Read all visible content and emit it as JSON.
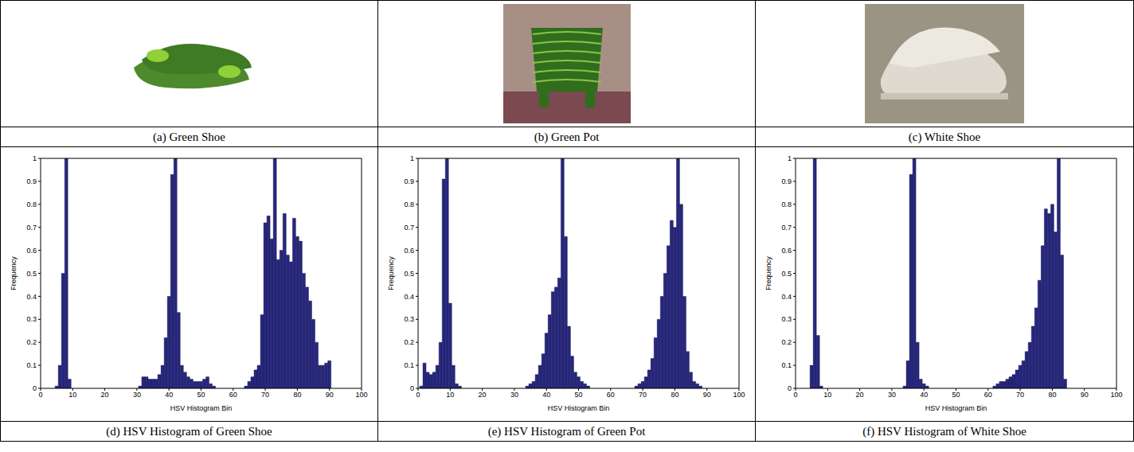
{
  "images": [
    {
      "caption": "(a) Green Shoe"
    },
    {
      "caption": "(b) Green Pot"
    },
    {
      "caption": "(c) White Shoe"
    }
  ],
  "chart_data": [
    {
      "type": "bar",
      "title": "(d) HSV Histogram of Green Shoe",
      "x_label": "HSV Histogram Bin",
      "y_label": "Frequency",
      "color": "#27277f",
      "x": [
        5,
        6,
        7,
        8,
        9,
        31,
        32,
        33,
        34,
        35,
        36,
        37,
        38,
        39,
        40,
        41,
        42,
        43,
        44,
        45,
        46,
        47,
        48,
        49,
        50,
        51,
        52,
        53,
        54,
        64,
        65,
        66,
        67,
        68,
        69,
        70,
        71,
        72,
        73,
        74,
        75,
        76,
        77,
        78,
        79,
        80,
        81,
        82,
        83,
        84,
        85,
        86,
        87,
        88,
        89,
        90
      ],
      "values": [
        0.01,
        0.1,
        0.5,
        1.0,
        0.04,
        0.01,
        0.05,
        0.05,
        0.04,
        0.04,
        0.04,
        0.06,
        0.1,
        0.22,
        0.4,
        0.93,
        1.0,
        0.33,
        0.1,
        0.07,
        0.05,
        0.04,
        0.03,
        0.03,
        0.03,
        0.04,
        0.05,
        0.02,
        0.01,
        0.01,
        0.03,
        0.05,
        0.08,
        0.1,
        0.32,
        0.72,
        0.75,
        0.65,
        1.0,
        0.56,
        0.6,
        0.76,
        0.58,
        0.55,
        0.74,
        0.66,
        0.64,
        0.5,
        0.44,
        0.38,
        0.3,
        0.2,
        0.1,
        0.1,
        0.11,
        0.12
      ],
      "xlim": [
        0,
        100
      ],
      "xticks": [
        0,
        10,
        20,
        30,
        40,
        50,
        60,
        70,
        80,
        90,
        100
      ],
      "ylim": [
        0,
        1
      ],
      "yticks": [
        0,
        0.1,
        0.2,
        0.3,
        0.4,
        0.5,
        0.6,
        0.7,
        0.8,
        0.9,
        1
      ]
    },
    {
      "type": "bar",
      "title": "(e) HSV Histogram of Green Pot",
      "x_label": "HSV Histogram Bin",
      "y_label": "Frequency",
      "color": "#27277f",
      "x": [
        1,
        2,
        3,
        4,
        5,
        6,
        7,
        8,
        9,
        10,
        11,
        12,
        13,
        34,
        35,
        36,
        37,
        38,
        39,
        40,
        41,
        42,
        43,
        44,
        45,
        46,
        47,
        48,
        49,
        50,
        51,
        52,
        53,
        68,
        69,
        70,
        71,
        72,
        73,
        74,
        75,
        76,
        77,
        78,
        79,
        80,
        81,
        82,
        83,
        84,
        85,
        86,
        87,
        88
      ],
      "values": [
        0.01,
        0.11,
        0.07,
        0.06,
        0.07,
        0.1,
        0.2,
        0.91,
        1.0,
        0.37,
        0.1,
        0.02,
        0.01,
        0.01,
        0.02,
        0.03,
        0.06,
        0.1,
        0.15,
        0.24,
        0.32,
        0.42,
        0.44,
        0.48,
        1.0,
        0.66,
        0.27,
        0.14,
        0.07,
        0.05,
        0.03,
        0.02,
        0.01,
        0.01,
        0.02,
        0.03,
        0.05,
        0.08,
        0.13,
        0.22,
        0.3,
        0.4,
        0.5,
        0.62,
        0.73,
        0.7,
        1.0,
        0.8,
        0.4,
        0.16,
        0.07,
        0.03,
        0.02,
        0.01
      ],
      "xlim": [
        0,
        100
      ],
      "xticks": [
        0,
        10,
        20,
        30,
        40,
        50,
        60,
        70,
        80,
        90,
        100
      ],
      "ylim": [
        0,
        1
      ],
      "yticks": [
        0,
        0.1,
        0.2,
        0.3,
        0.4,
        0.5,
        0.6,
        0.7,
        0.8,
        0.9,
        1
      ]
    },
    {
      "type": "bar",
      "title": "(f) HSV Histogram of White Shoe",
      "x_label": "HSV Histogram Bin",
      "y_label": "Frequency",
      "color": "#27277f",
      "x": [
        5,
        6,
        7,
        8,
        34,
        35,
        36,
        37,
        38,
        39,
        40,
        41,
        62,
        63,
        64,
        65,
        66,
        67,
        68,
        69,
        70,
        71,
        72,
        73,
        74,
        75,
        76,
        77,
        78,
        79,
        80,
        81,
        82,
        83,
        84
      ],
      "values": [
        0.1,
        1.0,
        0.23,
        0.01,
        0.01,
        0.12,
        0.93,
        1.0,
        0.2,
        0.04,
        0.02,
        0.01,
        0.01,
        0.02,
        0.03,
        0.03,
        0.04,
        0.05,
        0.06,
        0.08,
        0.1,
        0.12,
        0.16,
        0.2,
        0.27,
        0.35,
        0.47,
        0.62,
        0.78,
        0.76,
        0.8,
        0.68,
        1.0,
        0.58,
        0.04
      ],
      "xlim": [
        0,
        100
      ],
      "xticks": [
        0,
        10,
        20,
        30,
        40,
        50,
        60,
        70,
        80,
        90,
        100
      ],
      "ylim": [
        0,
        1
      ],
      "yticks": [
        0,
        0.1,
        0.2,
        0.3,
        0.4,
        0.5,
        0.6,
        0.7,
        0.8,
        0.9,
        1
      ]
    }
  ]
}
